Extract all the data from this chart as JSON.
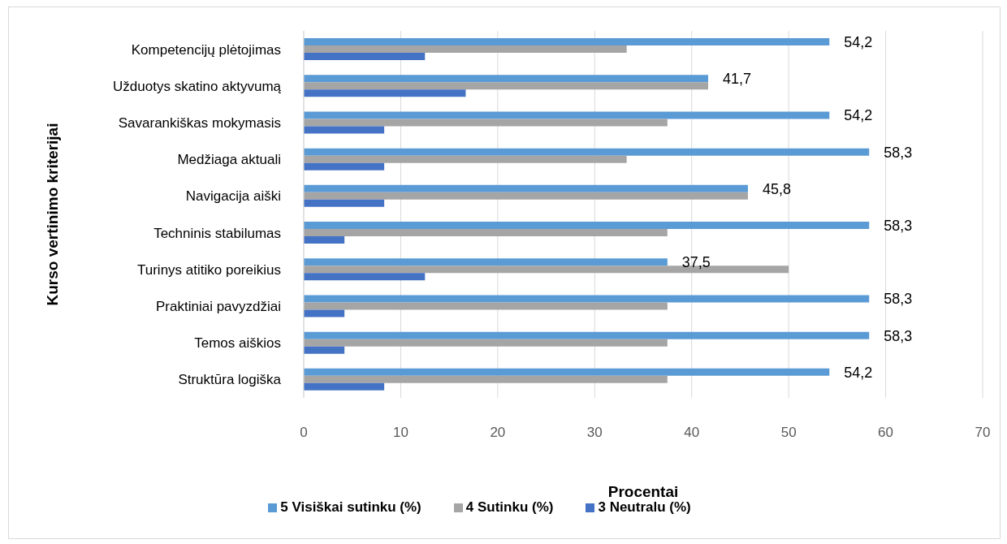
{
  "chart_data": {
    "type": "bar",
    "orientation": "horizontal",
    "xlabel": "Procentai",
    "ylabel": "Kurso vertinimo kriterijai",
    "categories": [
      "Kompetencijų plėtojimas",
      "Užduotys skatino aktyvumą",
      "Savarankiškas mokymasis",
      "Medžiaga aktuali",
      "Navigacija aiški",
      "Techninis stabilumas",
      "Turinys atitiko poreikius",
      "Praktiniai pavyzdžiai",
      "Temos aiškios",
      "Struktūra logiška"
    ],
    "series": [
      {
        "name": "5 Visiškai sutinku (%)",
        "color": "#5b9bd5",
        "values": [
          54.2,
          41.7,
          54.2,
          58.3,
          45.8,
          58.3,
          37.5,
          58.3,
          58.3,
          54.2
        ],
        "value_labels": [
          "54,2",
          "41,7",
          "54,2",
          "58,3",
          "45,8",
          "58,3",
          "37,5",
          "58,3",
          "58,3",
          "54,2"
        ]
      },
      {
        "name": "4 Sutinku (%)",
        "color": "#a5a5a5",
        "values": [
          33.3,
          41.7,
          37.5,
          33.3,
          45.8,
          37.5,
          50,
          37.5,
          37.5,
          37.5
        ]
      },
      {
        "name": "3 Neutralu (%)",
        "color": "#4472c4",
        "values": [
          12.5,
          16.7,
          8.3,
          8.3,
          8.3,
          4.2,
          12.5,
          4.2,
          4.2,
          8.3
        ]
      }
    ],
    "xlim": [
      0,
      70
    ],
    "xticks": [
      0,
      10,
      20,
      30,
      40,
      50,
      60,
      70
    ],
    "grid": "x",
    "legend": "bottom"
  }
}
